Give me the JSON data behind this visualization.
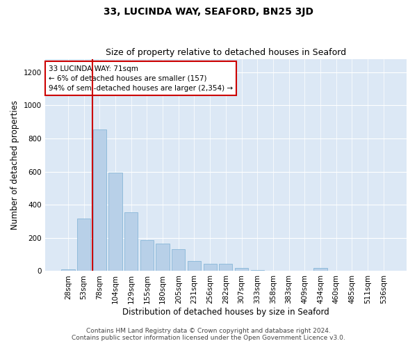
{
  "title1": "33, LUCINDA WAY, SEAFORD, BN25 3JD",
  "title2": "Size of property relative to detached houses in Seaford",
  "xlabel": "Distribution of detached houses by size in Seaford",
  "ylabel": "Number of detached properties",
  "categories": [
    "28sqm",
    "53sqm",
    "78sqm",
    "104sqm",
    "129sqm",
    "155sqm",
    "180sqm",
    "205sqm",
    "231sqm",
    "256sqm",
    "282sqm",
    "307sqm",
    "333sqm",
    "358sqm",
    "383sqm",
    "409sqm",
    "434sqm",
    "460sqm",
    "485sqm",
    "511sqm",
    "536sqm"
  ],
  "values": [
    10,
    315,
    855,
    595,
    355,
    185,
    165,
    130,
    60,
    45,
    45,
    20,
    5,
    0,
    0,
    0,
    20,
    0,
    0,
    0,
    0
  ],
  "bar_color": "#b8d0e8",
  "bar_edge_color": "#7aafd4",
  "bar_width": 0.85,
  "vline_x": 1.55,
  "vline_color": "#cc0000",
  "annotation_text": "33 LUCINDA WAY: 71sqm\n← 6% of detached houses are smaller (157)\n94% of semi-detached houses are larger (2,354) →",
  "annotation_box_color": "#ffffff",
  "annotation_box_edge": "#cc0000",
  "ylim": [
    0,
    1280
  ],
  "yticks": [
    0,
    200,
    400,
    600,
    800,
    1000,
    1200
  ],
  "background_color": "#dce8f5",
  "footer1": "Contains HM Land Registry data © Crown copyright and database right 2024.",
  "footer2": "Contains public sector information licensed under the Open Government Licence v3.0.",
  "title1_fontsize": 10,
  "title2_fontsize": 9,
  "xlabel_fontsize": 8.5,
  "ylabel_fontsize": 8.5,
  "tick_fontsize": 7.5,
  "annotation_fontsize": 7.5,
  "footer_fontsize": 6.5
}
